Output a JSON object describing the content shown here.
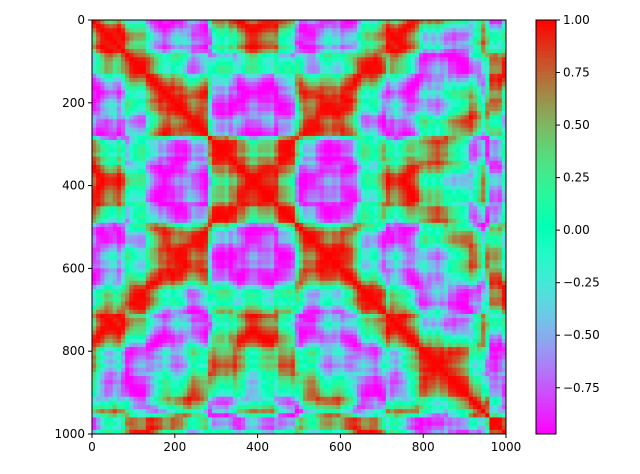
{
  "chart_data": {
    "type": "heatmap",
    "title": "",
    "xlabel": "",
    "ylabel": "",
    "x_range": [
      0,
      1000
    ],
    "y_range": [
      0,
      1000
    ],
    "y_inverted": true,
    "x_ticks": [
      "0",
      "200",
      "400",
      "600",
      "800",
      "1000"
    ],
    "y_ticks": [
      "0",
      "200",
      "400",
      "600",
      "800",
      "1000"
    ],
    "colormap": "rainbow",
    "value_range": [
      -0.97,
      1.0
    ],
    "colorbar_ticks": [
      "1.00",
      "0.75",
      "0.50",
      "0.25",
      "0.00",
      "−0.25",
      "−0.50",
      "−0.75"
    ],
    "colorbar_tick_values": [
      1.0,
      0.75,
      0.5,
      0.25,
      0.0,
      -0.25,
      -0.5,
      -0.75
    ],
    "grid": false,
    "description_values": {
      "grid_resolution": 100,
      "pattern": "symmetric self-similarity (recurrence-like) matrix"
    }
  }
}
